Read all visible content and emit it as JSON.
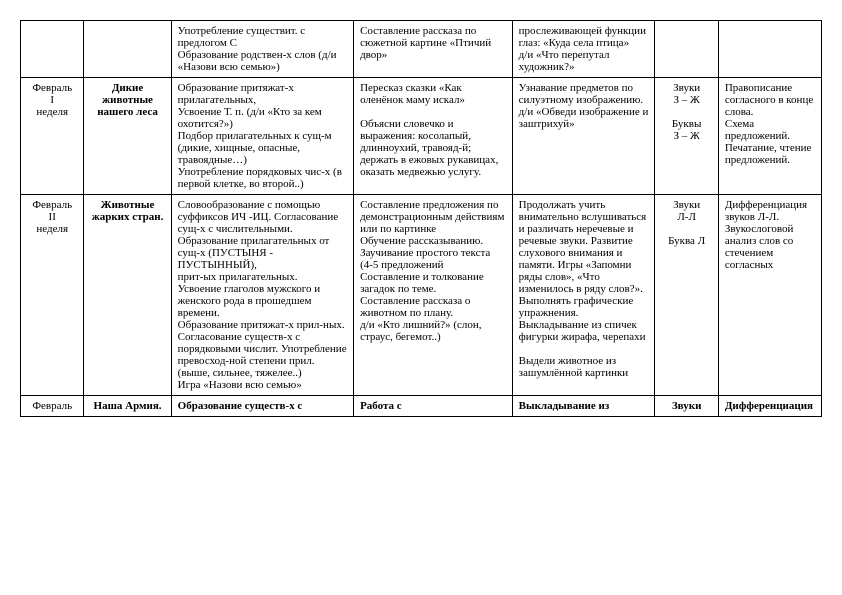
{
  "rows": [
    {
      "c1": "",
      "c2": "",
      "c3": "Употребление существит. с предлогом С\nОбразование родствен-х слов (д/и «Назови всю семью»)",
      "c4": "Составление рассказа по сюжетной картине «Птичий двор»",
      "c5": "прослеживающей функции глаз: «Куда села птица»\nд/и «Что перепутал художник?»",
      "c6": "",
      "c7": ""
    },
    {
      "c1": "Февраль\nI\nнеделя",
      "c2": "Дикие\nживотные\nнашего леса",
      "c3": "Образование притяжат-х прилагательных,\nУсвоение Т. п. (д/и «Кто за кем охотится?»)\nПодбор прилагательных к сущ-м (дикие, хищные, опасные, травоядные…)\nУпотребление порядковых чис-х (в первой клетке, во второй..)",
      "c4": "Пересказ сказки «Как оленёнок маму искал»\n\nОбъясни словечко и выражения: косолапый, длинноухий, травояд-й; держать в ежовых рукавицах, оказать медвежью услугу.",
      "c5": "Узнавание предметов по силуэтному изображению.\nд/и «Обведи изображение и заштрихуй»",
      "c6": "Звуки\nЗ – Ж\n\nБуквы\nЗ – Ж",
      "c7": "Правописание согласного в конце слова.\nСхема предложений.\nПечатание, чтение предложений."
    },
    {
      "c1": "Февраль\nII\nнеделя",
      "c2": "Животные\nжарких стран.",
      "c3": "Словообразование с помощью суффиксов ИЧ -ИЦ. Согласование сущ-х с числительными.\nОбразование прилагательных от сущ-х (ПУСТЫНЯ - ПУСТЫННЫЙ),\nприт-ых прилагательных.\nУсвоение глаголов мужского и женского рода в прошедшем времени.\nОбразование притяжат-х прил-ных. Согласование существ-х с порядковыми числит. Употребление превосход-ной степени прил. (выше, сильнее, тяжелее..)\nИгра «Назови всю семью»",
      "c4": "Составление предложения по демонстрационным действиям или по картинке\nОбучение рассказыванию.\nЗаучивание простого текста\n(4-5 предложений\nСоставление и толкование загадок по теме.\nСоставление рассказа о животном по плану.\nд/и «Кто лишний?» (слон, страус, бегемот..)",
      "c5": "Продолжать учить внимательно вслушиваться и различать неречевые и речевые звуки. Развитие слухового внимания и памяти. Игры «Запомни ряды слов», «Что изменилось в ряду слов?».\nВыполнять графические упражнения.\nВыкладывание из спичек фигурки жирафа, черепахи\n\nВыдели животное из зашумлённой картинки",
      "c6": "Звуки\nЛ-Л\n\nБуква Л",
      "c7": "Дифференциация\nзвуков Л-Л.\nЗвукослоговой анализ слов со стечением согласных"
    },
    {
      "c1": "Февраль",
      "c2": "Наша Армия.",
      "c3": "Образование существ-х с",
      "c4": "Работа с",
      "c5": "Выкладывание из",
      "c6": "Звуки",
      "c7": "Дифференциация"
    }
  ]
}
